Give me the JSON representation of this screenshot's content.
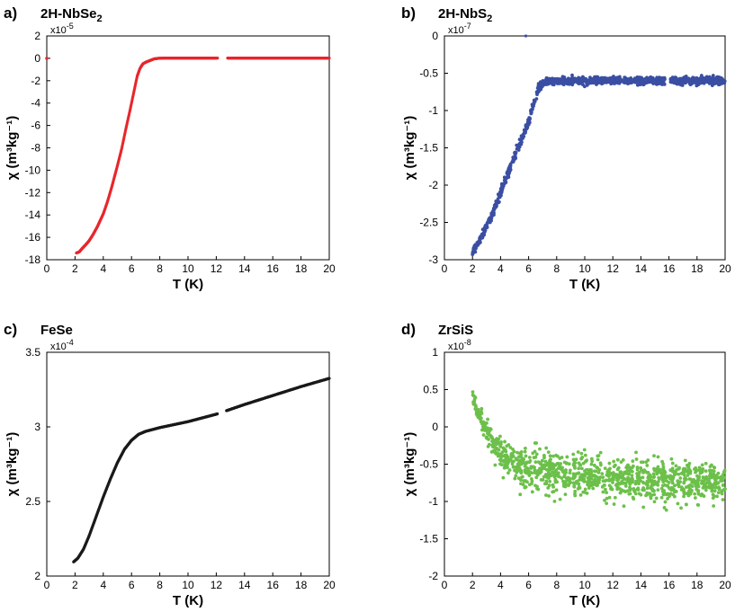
{
  "chart_data": [
    {
      "type": "scatter",
      "panel": "a)",
      "title": "2H-NbSe",
      "title_sub": "2",
      "xlabel": "T (K)",
      "ylabel": "χ (m³kg⁻¹)",
      "exponent_base": "x10",
      "exponent": "-5",
      "xlim": [
        0,
        20
      ],
      "ylim": [
        -18,
        2
      ],
      "xticks": [
        0,
        2,
        4,
        6,
        8,
        10,
        12,
        14,
        16,
        18,
        20
      ],
      "yticks": [
        2,
        0,
        -2,
        -4,
        -6,
        -8,
        -10,
        -12,
        -14,
        -16,
        -18
      ],
      "color": "#e8262b",
      "gaps": [
        [
          12.1,
          12.8
        ]
      ],
      "points": [
        [
          0.0,
          0.0
        ],
        [
          2.1,
          -17.4
        ],
        [
          2.3,
          -17.3
        ],
        [
          2.5,
          -17.0
        ],
        [
          2.8,
          -16.6
        ],
        [
          3.0,
          -16.3
        ],
        [
          3.3,
          -15.7
        ],
        [
          3.6,
          -15.0
        ],
        [
          4.0,
          -13.9
        ],
        [
          4.3,
          -12.8
        ],
        [
          4.6,
          -11.5
        ],
        [
          5.0,
          -9.6
        ],
        [
          5.3,
          -8.1
        ],
        [
          5.6,
          -6.3
        ],
        [
          5.9,
          -4.6
        ],
        [
          6.2,
          -2.8
        ],
        [
          6.4,
          -1.6
        ],
        [
          6.6,
          -0.9
        ],
        [
          6.8,
          -0.5
        ],
        [
          7.0,
          -0.35
        ],
        [
          7.3,
          -0.2
        ],
        [
          7.6,
          -0.05
        ],
        [
          7.9,
          0.0
        ],
        [
          8.3,
          0.02
        ],
        [
          20.0,
          0.02
        ]
      ]
    },
    {
      "type": "scatter",
      "panel": "b)",
      "title": "2H-NbS",
      "title_sub": "2",
      "xlabel": "T (K)",
      "ylabel": "χ (m³kg⁻¹)",
      "exponent_base": "x10",
      "exponent": "-7",
      "xlim": [
        0,
        20
      ],
      "ylim": [
        -3,
        0
      ],
      "xticks": [
        0,
        2,
        4,
        6,
        8,
        10,
        12,
        14,
        16,
        18,
        20
      ],
      "yticks": [
        0,
        -0.5,
        -1,
        -1.5,
        -2,
        -2.5,
        -3
      ],
      "color": "#3a4ea3",
      "noise": 0.05,
      "gaps": [
        [
          15.7,
          16.1
        ]
      ],
      "outliers": [
        [
          5.8,
          0.0
        ]
      ],
      "points": [
        [
          2.0,
          -2.9
        ],
        [
          2.5,
          -2.75
        ],
        [
          3.0,
          -2.55
        ],
        [
          3.5,
          -2.35
        ],
        [
          4.0,
          -2.1
        ],
        [
          4.5,
          -1.85
        ],
        [
          5.0,
          -1.62
        ],
        [
          5.5,
          -1.38
        ],
        [
          6.0,
          -1.15
        ],
        [
          6.4,
          -0.88
        ],
        [
          6.7,
          -0.7
        ],
        [
          7.0,
          -0.62
        ],
        [
          8.0,
          -0.6
        ],
        [
          20.0,
          -0.6
        ]
      ]
    },
    {
      "type": "scatter",
      "panel": "c)",
      "title": "FeSe",
      "xlabel": "T (K)",
      "ylabel": "χ (m³kg⁻¹)",
      "exponent_base": "x10",
      "exponent": "-4",
      "xlim": [
        0,
        20
      ],
      "ylim": [
        2,
        3.5
      ],
      "xticks": [
        0,
        2,
        4,
        6,
        8,
        10,
        12,
        14,
        16,
        18,
        20
      ],
      "yticks": [
        3.5,
        3,
        2.5,
        2
      ],
      "color": "#1a1a1a",
      "gaps": [
        [
          12.1,
          12.7
        ]
      ],
      "points": [
        [
          1.9,
          2.095
        ],
        [
          2.2,
          2.12
        ],
        [
          2.6,
          2.18
        ],
        [
          3.0,
          2.27
        ],
        [
          3.5,
          2.4
        ],
        [
          4.0,
          2.53
        ],
        [
          4.5,
          2.65
        ],
        [
          5.0,
          2.76
        ],
        [
          5.5,
          2.85
        ],
        [
          6.0,
          2.91
        ],
        [
          6.5,
          2.95
        ],
        [
          7.0,
          2.97
        ],
        [
          8.0,
          2.995
        ],
        [
          10.0,
          3.035
        ],
        [
          12.0,
          3.085
        ],
        [
          14.0,
          3.15
        ],
        [
          16.0,
          3.21
        ],
        [
          18.0,
          3.27
        ],
        [
          20.0,
          3.325
        ]
      ]
    },
    {
      "type": "scatter",
      "panel": "d)",
      "title": "ZrSiS",
      "xlabel": "T (K)",
      "ylabel": "χ (m³kg⁻¹)",
      "exponent_base": "x10",
      "exponent": "-8",
      "xlim": [
        0,
        20
      ],
      "ylim": [
        -2,
        1
      ],
      "xticks": [
        0,
        2,
        4,
        6,
        8,
        10,
        12,
        14,
        16,
        18,
        20
      ],
      "yticks": [
        1,
        0.5,
        0,
        -0.5,
        -1,
        -1.5,
        -2
      ],
      "color": "#6cc04a",
      "noise": 0.25,
      "points": [
        [
          2.0,
          0.4
        ],
        [
          2.5,
          0.15
        ],
        [
          3.0,
          -0.05
        ],
        [
          3.5,
          -0.25
        ],
        [
          4.0,
          -0.38
        ],
        [
          5.0,
          -0.5
        ],
        [
          6.0,
          -0.58
        ],
        [
          8.0,
          -0.63
        ],
        [
          10.0,
          -0.67
        ],
        [
          14.0,
          -0.72
        ],
        [
          20.0,
          -0.75
        ]
      ]
    }
  ]
}
